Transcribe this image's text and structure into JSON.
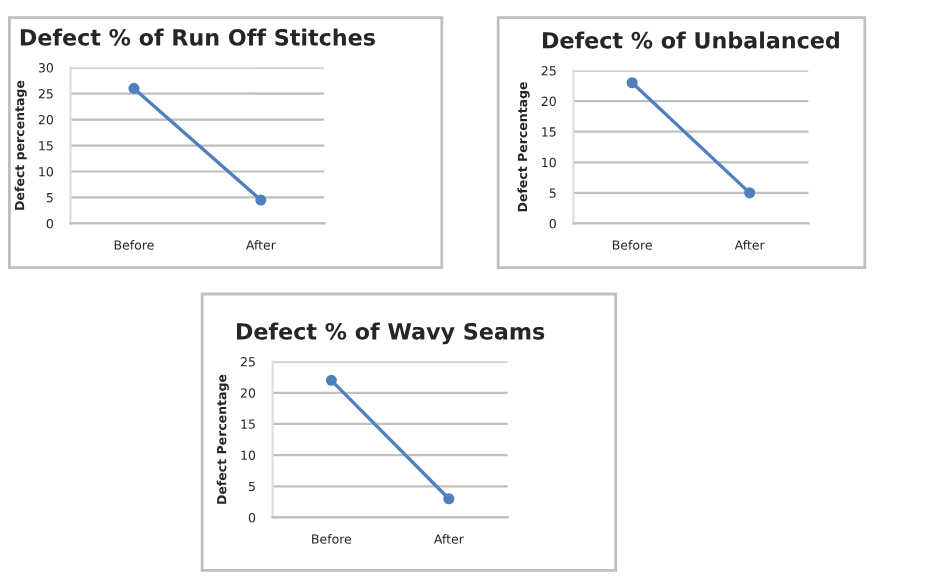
{
  "chart_data": [
    {
      "type": "line",
      "title": "Defect % of Run Off Stitches",
      "ylabel": "Defect percentage",
      "categories": [
        "Before",
        "After"
      ],
      "series": [
        {
          "color": "#4f81bd",
          "values": [
            26,
            4.5
          ]
        }
      ],
      "ylim": [
        0,
        30
      ],
      "yticks": [
        0,
        5,
        10,
        15,
        20,
        25,
        30
      ],
      "grid": "y",
      "marker": "circle"
    },
    {
      "type": "line",
      "title": "Defect % of Unbalanced",
      "ylabel": "Defect Percentage",
      "categories": [
        "Before",
        "After"
      ],
      "series": [
        {
          "color": "#4f81bd",
          "values": [
            23,
            5
          ]
        }
      ],
      "ylim": [
        0,
        25
      ],
      "yticks": [
        0,
        5,
        10,
        15,
        20,
        25
      ],
      "grid": "y",
      "marker": "circle"
    },
    {
      "type": "line",
      "title": "Defect % of Wavy Seams",
      "ylabel": "Defect Percentage",
      "categories": [
        "Before",
        "After"
      ],
      "series": [
        {
          "color": "#4f81bd",
          "values": [
            22,
            3
          ]
        }
      ],
      "ylim": [
        0,
        25
      ],
      "yticks": [
        0,
        5,
        10,
        15,
        20,
        25
      ],
      "grid": "y",
      "marker": "circle"
    }
  ]
}
